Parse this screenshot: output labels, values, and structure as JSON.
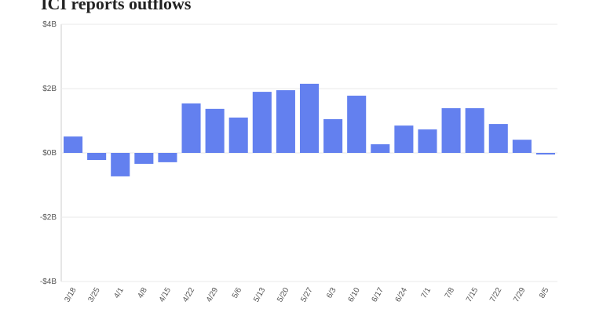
{
  "chart_data": {
    "type": "bar",
    "title": "ICI reports outflows",
    "categories": [
      "3/18",
      "3/25",
      "4/1",
      "4/8",
      "4/15",
      "4/22",
      "4/29",
      "5/6",
      "5/13",
      "5/20",
      "5/27",
      "6/3",
      "6/10",
      "6/17",
      "6/24",
      "7/1",
      "7/8",
      "7/15",
      "7/22",
      "7/29",
      "8/5"
    ],
    "values": [
      0.51,
      -0.22,
      -0.73,
      -0.34,
      -0.29,
      1.54,
      1.37,
      1.1,
      1.9,
      1.95,
      2.15,
      1.05,
      1.78,
      0.27,
      0.85,
      0.73,
      1.39,
      1.39,
      0.9,
      0.41,
      -0.05
    ],
    "color": "#6380ef",
    "ylim": [
      -4,
      4
    ],
    "yticks": [
      {
        "value": -4,
        "label": "-$4B"
      },
      {
        "value": -2,
        "label": "-$2B"
      },
      {
        "value": 0,
        "label": "$0B"
      },
      {
        "value": 2,
        "label": "$2B"
      },
      {
        "value": 4,
        "label": "$4B"
      }
    ],
    "grid": true
  }
}
